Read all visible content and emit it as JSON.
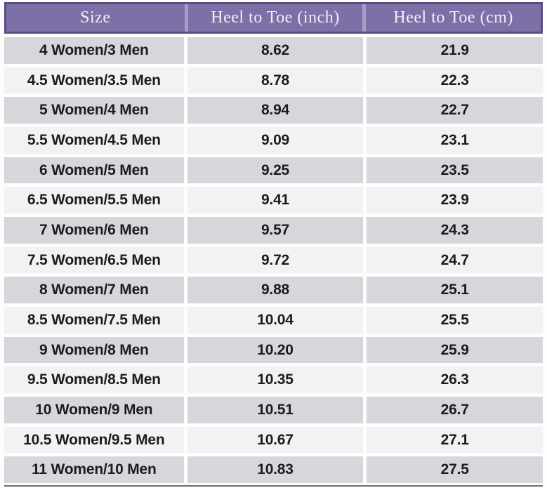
{
  "chart_data": {
    "type": "table",
    "columns": [
      "Size",
      "Heel to Toe (inch)",
      "Heel to Toe (cm)"
    ],
    "rows": [
      [
        "4 Women/3 Men",
        "8.62",
        "21.9"
      ],
      [
        "4.5 Women/3.5 Men",
        "8.78",
        "22.3"
      ],
      [
        "5 Women/4 Men",
        "8.94",
        "22.7"
      ],
      [
        "5.5 Women/4.5 Men",
        "9.09",
        "23.1"
      ],
      [
        "6 Women/5 Men",
        "9.25",
        "23.5"
      ],
      [
        "6.5 Women/5.5 Men",
        "9.41",
        "23.9"
      ],
      [
        "7 Women/6 Men",
        "9.57",
        "24.3"
      ],
      [
        "7.5 Women/6.5 Men",
        "9.72",
        "24.7"
      ],
      [
        "8 Women/7 Men",
        "9.88",
        "25.1"
      ],
      [
        "8.5 Women/7.5 Men",
        "10.04",
        "25.5"
      ],
      [
        "9 Women/8 Men",
        "10.20",
        "25.9"
      ],
      [
        "9.5 Women/8.5 Men",
        "10.35",
        "26.3"
      ],
      [
        "10 Women/9 Men",
        "10.51",
        "26.7"
      ],
      [
        "10.5 Women/9.5 Men",
        "10.67",
        "27.1"
      ],
      [
        "11 Women/10 Men",
        "10.83",
        "27.5"
      ]
    ]
  },
  "colors": {
    "header_bg": "#7c70a6",
    "header_border": "#584e7e",
    "header_divider": "#a79dc6",
    "header_text": "#f3eff8",
    "row_even_bg": "#d9d6db",
    "row_odd_bg": "#f3f1f4",
    "gap": "#fdfdfd",
    "body_text": "#1c1b1d",
    "bottom_line": "#6e6b74"
  }
}
